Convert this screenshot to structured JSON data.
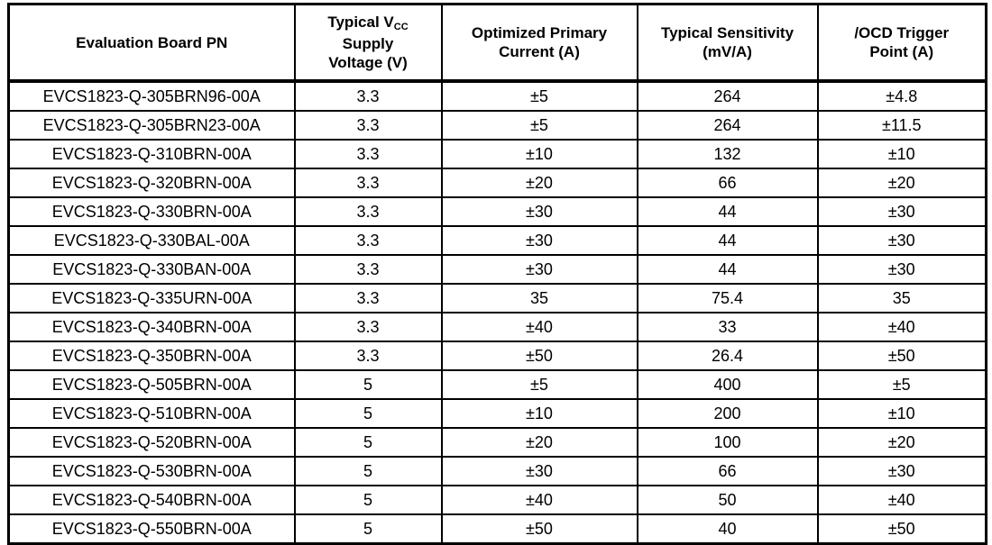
{
  "table": {
    "headers": {
      "board_pn": "Evaluation Board PN",
      "vcc_line1": "Typical V",
      "vcc_sub": "CC",
      "vcc_line2": "Supply",
      "vcc_line3": "Voltage (V)",
      "primary_line1": "Optimized Primary",
      "primary_line2": "Current (A)",
      "sensitivity_line1": "Typical Sensitivity",
      "sensitivity_line2": "(mV/A)",
      "ocd_line1": "/OCD Trigger",
      "ocd_line2": "Point (A)"
    },
    "rows": [
      [
        "EVCS1823-Q-305BRN96-00A",
        "3.3",
        "±5",
        "264",
        "±4.8"
      ],
      [
        "EVCS1823-Q-305BRN23-00A",
        "3.3",
        "±5",
        "264",
        "±11.5"
      ],
      [
        "EVCS1823-Q-310BRN-00A",
        "3.3",
        "±10",
        "132",
        "±10"
      ],
      [
        "EVCS1823-Q-320BRN-00A",
        "3.3",
        "±20",
        "66",
        "±20"
      ],
      [
        "EVCS1823-Q-330BRN-00A",
        "3.3",
        "±30",
        "44",
        "±30"
      ],
      [
        "EVCS1823-Q-330BAL-00A",
        "3.3",
        "±30",
        "44",
        "±30"
      ],
      [
        "EVCS1823-Q-330BAN-00A",
        "3.3",
        "±30",
        "44",
        "±30"
      ],
      [
        "EVCS1823-Q-335URN-00A",
        "3.3",
        "35",
        "75.4",
        "35"
      ],
      [
        "EVCS1823-Q-340BRN-00A",
        "3.3",
        "±40",
        "33",
        "±40"
      ],
      [
        "EVCS1823-Q-350BRN-00A",
        "3.3",
        "±50",
        "26.4",
        "±50"
      ],
      [
        "EVCS1823-Q-505BRN-00A",
        "5",
        "±5",
        "400",
        "±5"
      ],
      [
        "EVCS1823-Q-510BRN-00A",
        "5",
        "±10",
        "200",
        "±10"
      ],
      [
        "EVCS1823-Q-520BRN-00A",
        "5",
        "±20",
        "100",
        "±20"
      ],
      [
        "EVCS1823-Q-530BRN-00A",
        "5",
        "±30",
        "66",
        "±30"
      ],
      [
        "EVCS1823-Q-540BRN-00A",
        "5",
        "±40",
        "50",
        "±40"
      ],
      [
        "EVCS1823-Q-550BRN-00A",
        "5",
        "±50",
        "40",
        "±50"
      ]
    ],
    "colors": {
      "border": "#000000",
      "text": "#000000",
      "background": "#ffffff"
    }
  }
}
